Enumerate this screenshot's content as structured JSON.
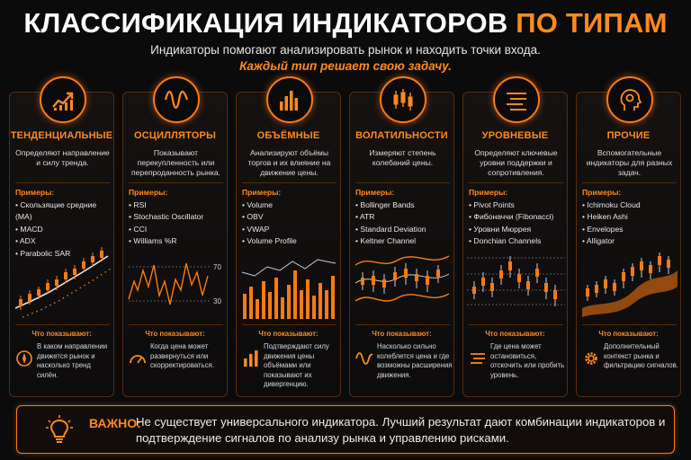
{
  "header": {
    "title_main": "КЛАССИФИКАЦИЯ ИНДИКАТОРОВ",
    "title_accent": "ПО ТИПАМ",
    "subtitle": "Индикаторы помогают анализировать рынок и находить точки входа.",
    "subtitle_accent": "Каждый тип решает свою задачу."
  },
  "common": {
    "examples_label": "Примеры:",
    "shows_label": "Что показывают:"
  },
  "cards": [
    {
      "icon": "trend-arrow-icon",
      "title": "ТЕНДЕНЦИАЛЬНЫЕ",
      "description": "Определяют направление и силу тренда.",
      "examples": [
        "Скользящие средние (MA)",
        "MACD",
        "ADX",
        "Parabolic SAR"
      ],
      "shows_icon": "compass-icon",
      "shows": "В каком направлении движется рынок и насколько тренд силён."
    },
    {
      "icon": "wave-icon",
      "title": "ОСЦИЛЛЯТОРЫ",
      "description": "Показывают перекупленность или перепроданность рынка.",
      "examples": [
        "RSI",
        "Stochastic Oscillator",
        "CCI",
        "Williams %R"
      ],
      "chart_levels": [
        "70",
        "30"
      ],
      "shows_icon": "gauge-icon",
      "shows": "Когда цена может развернуться или скорректироваться."
    },
    {
      "icon": "volume-bars-icon",
      "title": "ОБЪЁМНЫЕ",
      "description": "Анализируют объёмы торгов и их влияние на движение цены.",
      "examples": [
        "Volume",
        "OBV",
        "VWAP",
        "Volume Profile"
      ],
      "shows_icon": "bars-icon",
      "shows": "Подтверждают силу движения цены объёмами или показывают их дивергенцию."
    },
    {
      "icon": "candles-icon",
      "title": "ВОЛАТИЛЬНОСТИ",
      "description": "Измеряют степень колебаний цены.",
      "examples": [
        "Bollinger Bands",
        "ATR",
        "Standard Deviation",
        "Keltner Channel"
      ],
      "shows_icon": "wave-small-icon",
      "shows": "Насколько сильно колеблется цена и где возможны расширения движения."
    },
    {
      "icon": "levels-icon",
      "title": "УРОВНЕВЫЕ",
      "description": "Определяют ключевые уровни поддержки и сопротивления.",
      "examples": [
        "Pivot Points",
        "Фибоначчи (Fibonacci)",
        "Уровни Мюррея",
        "Donchian Channels"
      ],
      "shows_icon": "levels-small-icon",
      "shows": "Где цена может остановиться, отскочить или пробить уровень."
    },
    {
      "icon": "head-gear-icon",
      "title": "ПРОЧИЕ",
      "description": "Вспомогательные индикаторы для разных задач.",
      "examples": [
        "Ichimoku Cloud",
        "Heiken Ashi",
        "Envelopes",
        "Alligator"
      ],
      "shows_icon": "gear-icon",
      "shows": "Дополнительный контекст рынка и фильтрацию сигналов."
    }
  ],
  "important": {
    "icon": "lightbulb-icon",
    "label": "ВАЖНО:",
    "text": "Не существует универсального индикатора. Лучший результат дают комбинации индикаторов и подтверждение сигналов по анализу рынка и управлению рисками."
  },
  "colors": {
    "accent": "#ff8a1e",
    "border": "#5a2c0c",
    "background": "#0b0b0c"
  }
}
